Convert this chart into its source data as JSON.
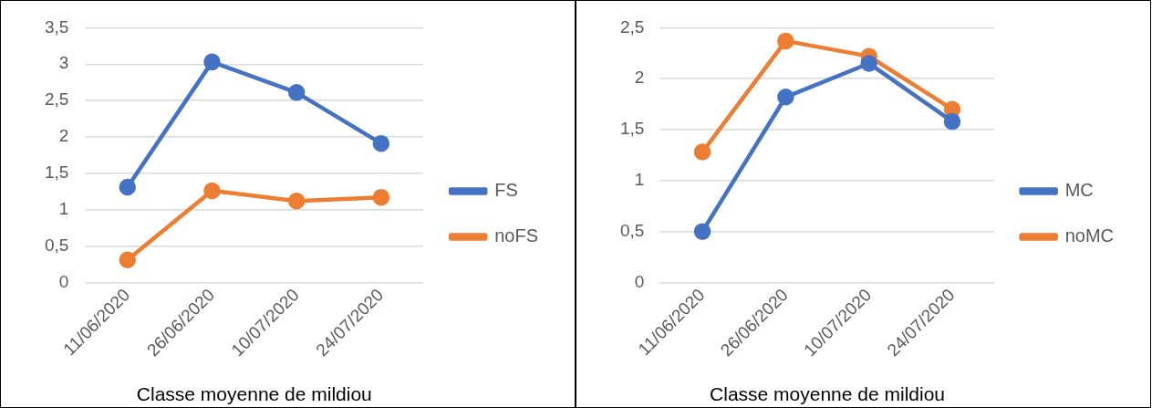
{
  "chart_data": [
    {
      "type": "line",
      "categories": [
        "11/06/2020",
        "26/06/2020",
        "10/07/2020",
        "24/07/2020"
      ],
      "xlabel": "Classe moyenne de mildiou",
      "ylim": [
        0,
        3.5
      ],
      "yticks": [
        0,
        {
          "value": 0.5,
          "label": "0,5"
        },
        1,
        {
          "value": 1.5,
          "label": "1,5"
        },
        2,
        {
          "value": 2.5,
          "label": "2,5"
        },
        3,
        {
          "value": 3.5,
          "label": "3,5"
        }
      ],
      "grid": "y",
      "legend": "right",
      "marker": "circle",
      "series": [
        {
          "name": "FS",
          "color": "#4472c4",
          "values": [
            1.31,
            3.03,
            2.61,
            1.91
          ]
        },
        {
          "name": "noFS",
          "color": "#ed7d31",
          "values": [
            0.31,
            1.26,
            1.12,
            1.17
          ]
        }
      ]
    },
    {
      "type": "line",
      "categories": [
        "11/06/2020",
        "26/06/2020",
        "10/07/2020",
        "24/07/2020"
      ],
      "xlabel": "Classe moyenne de mildiou",
      "ylim": [
        0,
        2.5
      ],
      "yticks": [
        0,
        {
          "value": 0.5,
          "label": "0,5"
        },
        1,
        {
          "value": 1.5,
          "label": "1,5"
        },
        2,
        {
          "value": 2.5,
          "label": "2,5"
        }
      ],
      "grid": "y",
      "legend": "right",
      "marker": "circle",
      "series": [
        {
          "name": "MC",
          "color": "#4472c4",
          "values": [
            0.5,
            1.82,
            2.15,
            1.58
          ]
        },
        {
          "name": "noMC",
          "color": "#ed7d31",
          "values": [
            1.28,
            2.37,
            2.22,
            1.7
          ]
        }
      ]
    }
  ]
}
